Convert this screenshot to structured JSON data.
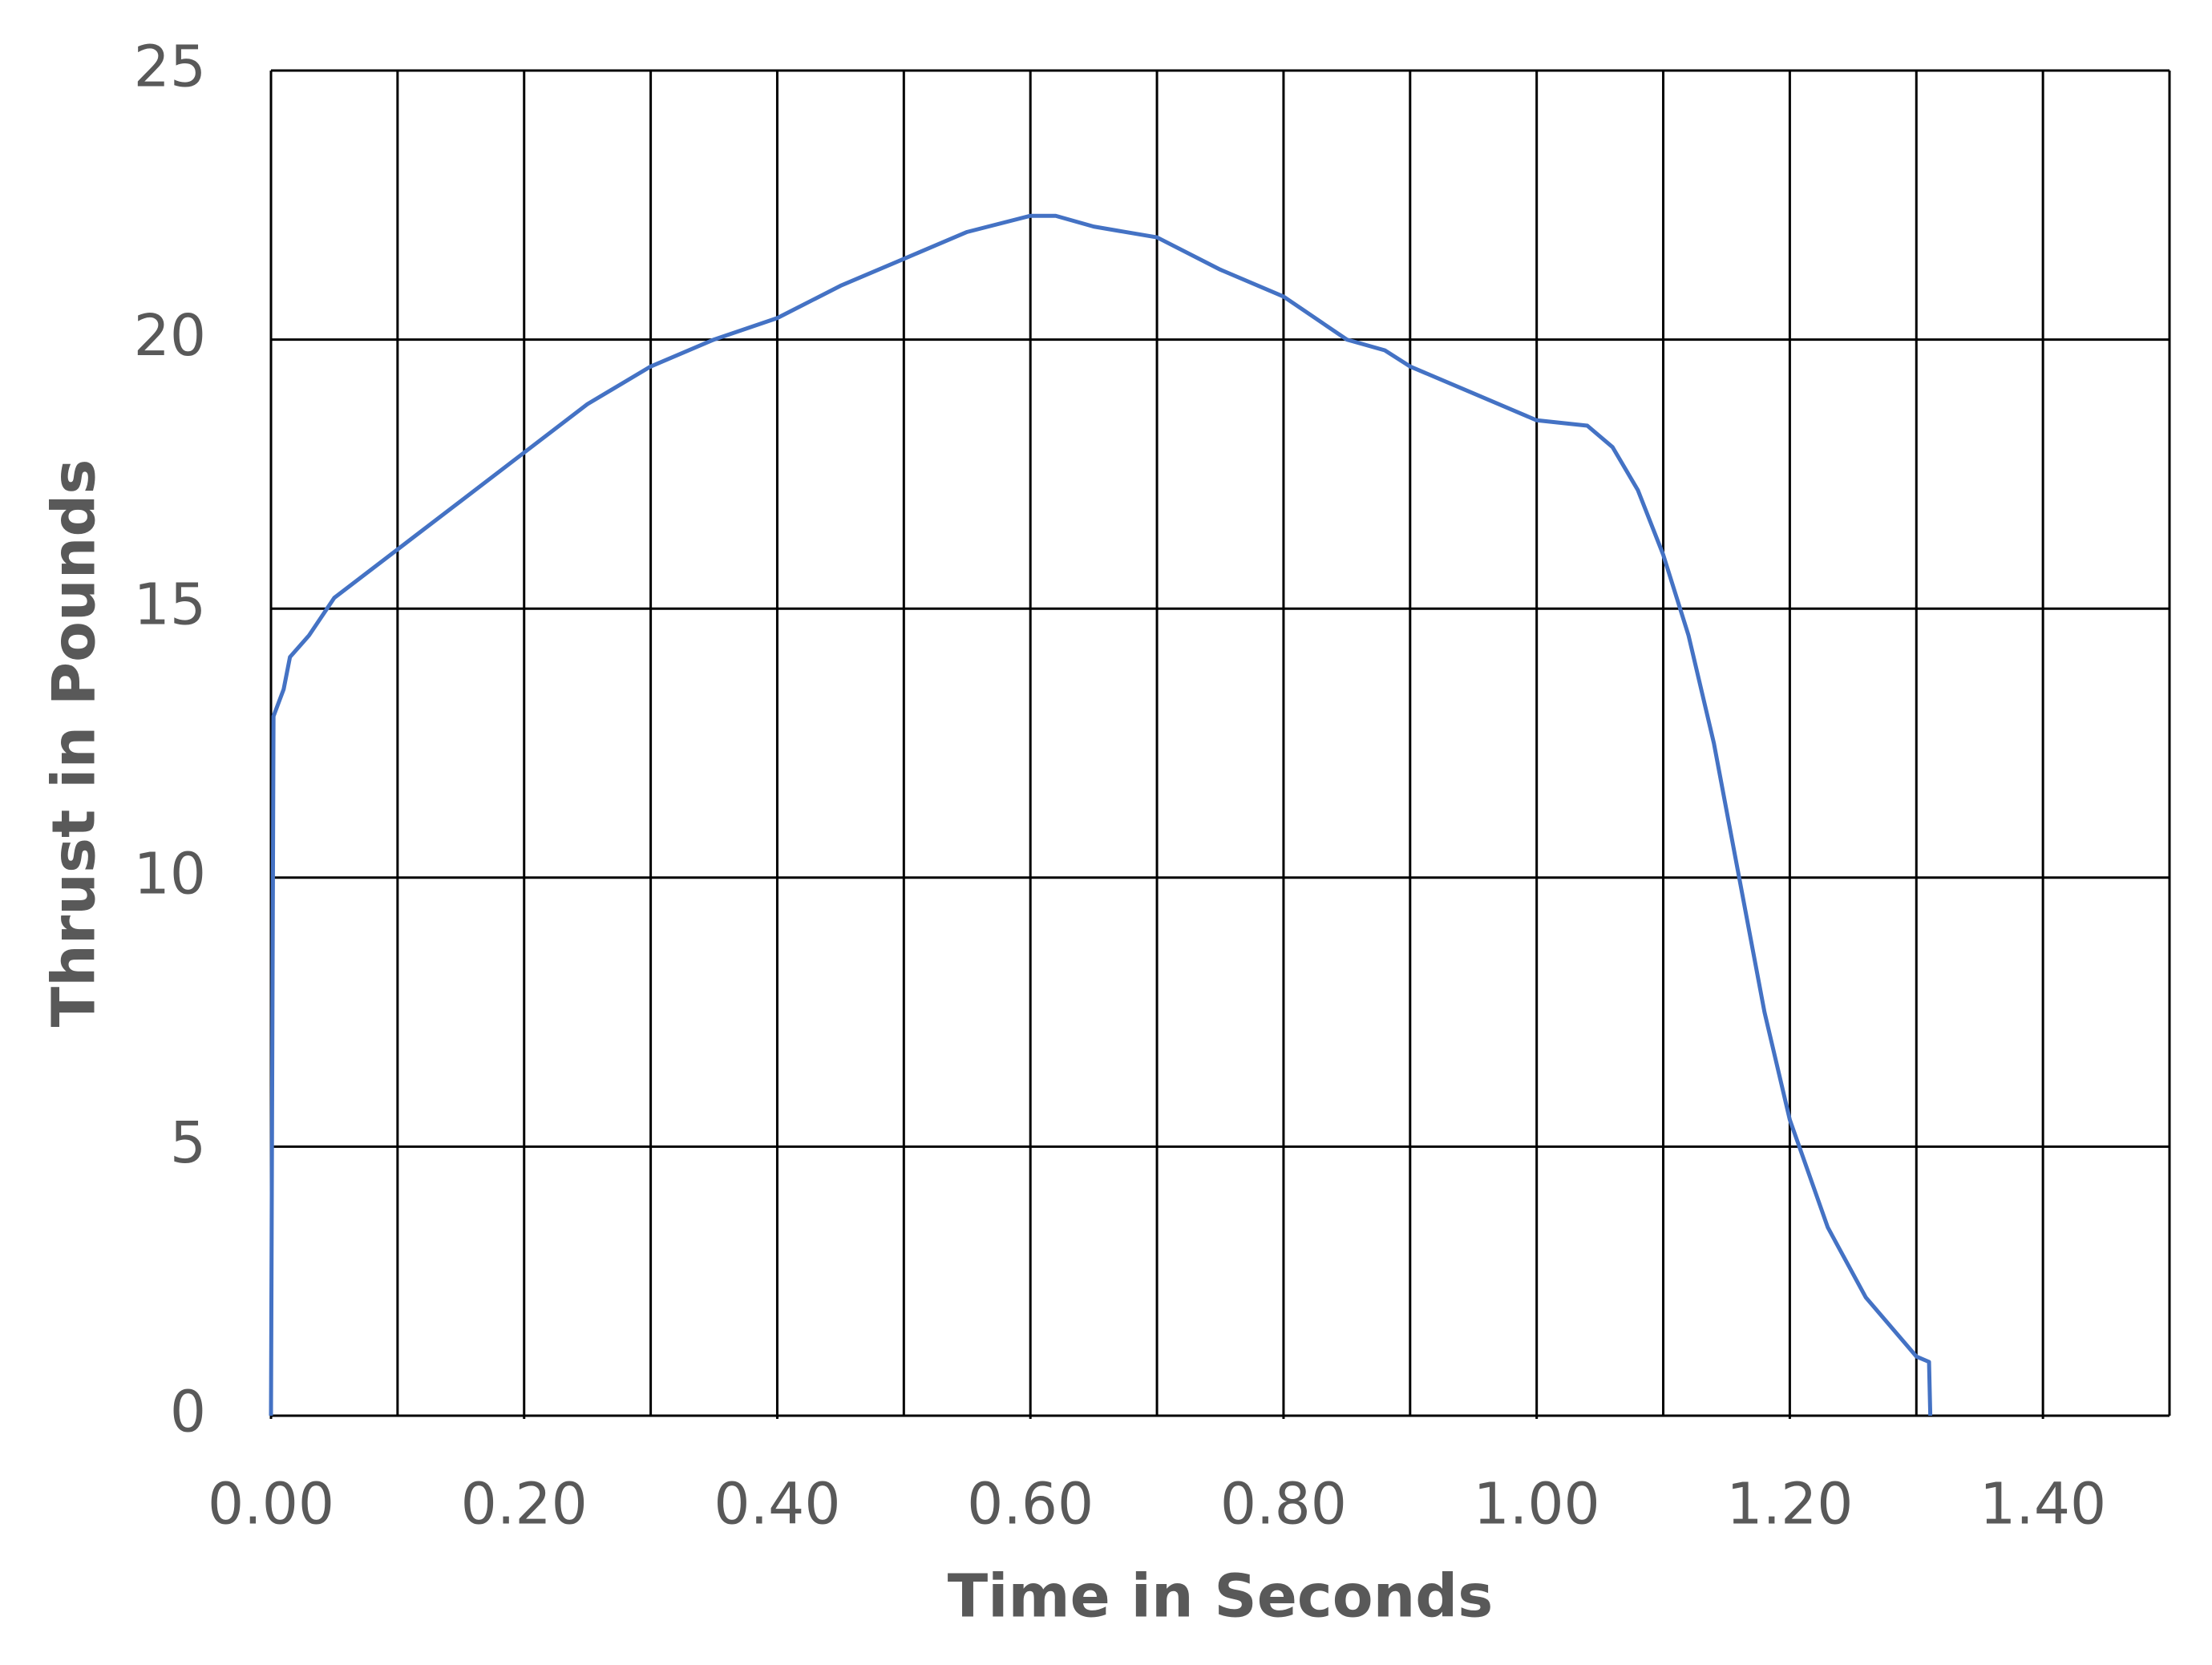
{
  "chart_data": {
    "type": "line",
    "x_label": "Time in Seconds",
    "y_label": "Thrust in Pounds",
    "x": [
      0,
      0.002,
      0.01,
      0.015,
      0.03,
      0.05,
      0.1,
      0.15,
      0.2,
      0.25,
      0.3,
      0.35,
      0.4,
      0.45,
      0.5,
      0.55,
      0.6,
      0.62,
      0.65,
      0.7,
      0.75,
      0.8,
      0.85,
      0.88,
      0.9,
      0.95,
      1.0,
      1.04,
      1.06,
      1.08,
      1.1,
      1.12,
      1.14,
      1.16,
      1.18,
      1.2,
      1.23,
      1.26,
      1.3,
      1.31,
      1.311
    ],
    "series": [
      {
        "name": "Thrust",
        "color": "#4472c4",
        "values": [
          0,
          13,
          13.5,
          14.1,
          14.5,
          15.2,
          16.1,
          17,
          17.9,
          18.8,
          19.5,
          20,
          20.4,
          21,
          21.5,
          22,
          22.3,
          22.3,
          22.1,
          21.9,
          21.3,
          20.8,
          20,
          19.8,
          19.5,
          19,
          18.5,
          18.4,
          18,
          17.2,
          16,
          14.5,
          12.5,
          10,
          7.5,
          5.5,
          3.5,
          2.2,
          1.1,
          1,
          0
        ]
      }
    ],
    "xlim": [
      0,
      1.5
    ],
    "ylim": [
      0,
      25
    ],
    "xticks": [
      {
        "value": 0,
        "label": "0.00"
      },
      {
        "value": 0.2,
        "label": "0.20"
      },
      {
        "value": 0.4,
        "label": "0.40"
      },
      {
        "value": 0.6,
        "label": "0.60"
      },
      {
        "value": 0.8,
        "label": "0.80"
      },
      {
        "value": 1.0,
        "label": "1.00"
      },
      {
        "value": 1.2,
        "label": "1.20"
      },
      {
        "value": 1.4,
        "label": "1.40"
      }
    ],
    "yticks": [
      0,
      5,
      10,
      15,
      20,
      25
    ],
    "x_grid_interval": 0.1,
    "grid": true
  }
}
